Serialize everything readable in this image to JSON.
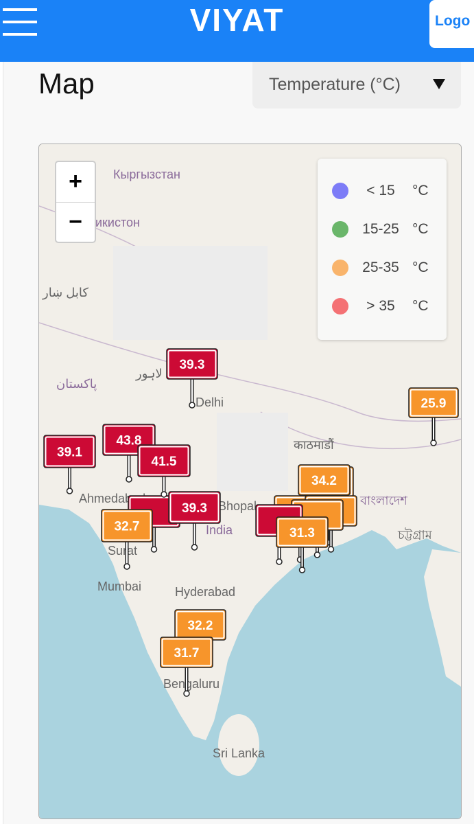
{
  "header": {
    "title": "VIYAT",
    "logo": "Logo"
  },
  "page": {
    "title": "Map",
    "dropdown": "Temperature (°C)"
  },
  "map": {
    "zoom_in": "+",
    "zoom_out": "−",
    "legend": [
      {
        "label": "< 15",
        "unit": "°C",
        "color": "#7d7cf7"
      },
      {
        "label": "15-25",
        "unit": "°C",
        "color": "#6ab66a"
      },
      {
        "label": "25-35",
        "unit": "°C",
        "color": "#f9b46b"
      },
      {
        "label": "> 35",
        "unit": "°C",
        "color": "#f47174"
      }
    ],
    "places": [
      "Кыргызстан",
      "Тоҷикистон",
      "کابل ښار",
      "لاہور",
      "پاکستان",
      "Delhi",
      "काठमाडौं",
      "Ahmedabad",
      "Bhopal",
      "India",
      "Surat",
      "Mumbai",
      "Hyderabad",
      "Bengaluru",
      "Sri Lanka",
      "বাংলাদেশ",
      "চট্টগ্রাম"
    ],
    "markers": [
      {
        "label": "34.2",
        "color": "#f7952b"
      },
      {
        "label": "39.3",
        "color": "#cc0a35"
      },
      {
        "label": "25.9",
        "color": "#f7952b"
      },
      {
        "label": "39.1",
        "color": "#cc0a35"
      },
      {
        "label": "43.8",
        "color": "#cc0a35"
      },
      {
        "label": "41.5",
        "color": "#cc0a35"
      },
      {
        "label": "39.3",
        "color": "#cc0a35"
      },
      {
        "label": "32.7",
        "color": "#f7952b"
      },
      {
        "label": "31.3",
        "color": "#f7952b"
      },
      {
        "label": "32.2",
        "color": "#f7952b"
      },
      {
        "label": "31.7",
        "color": "#f7952b"
      }
    ]
  }
}
